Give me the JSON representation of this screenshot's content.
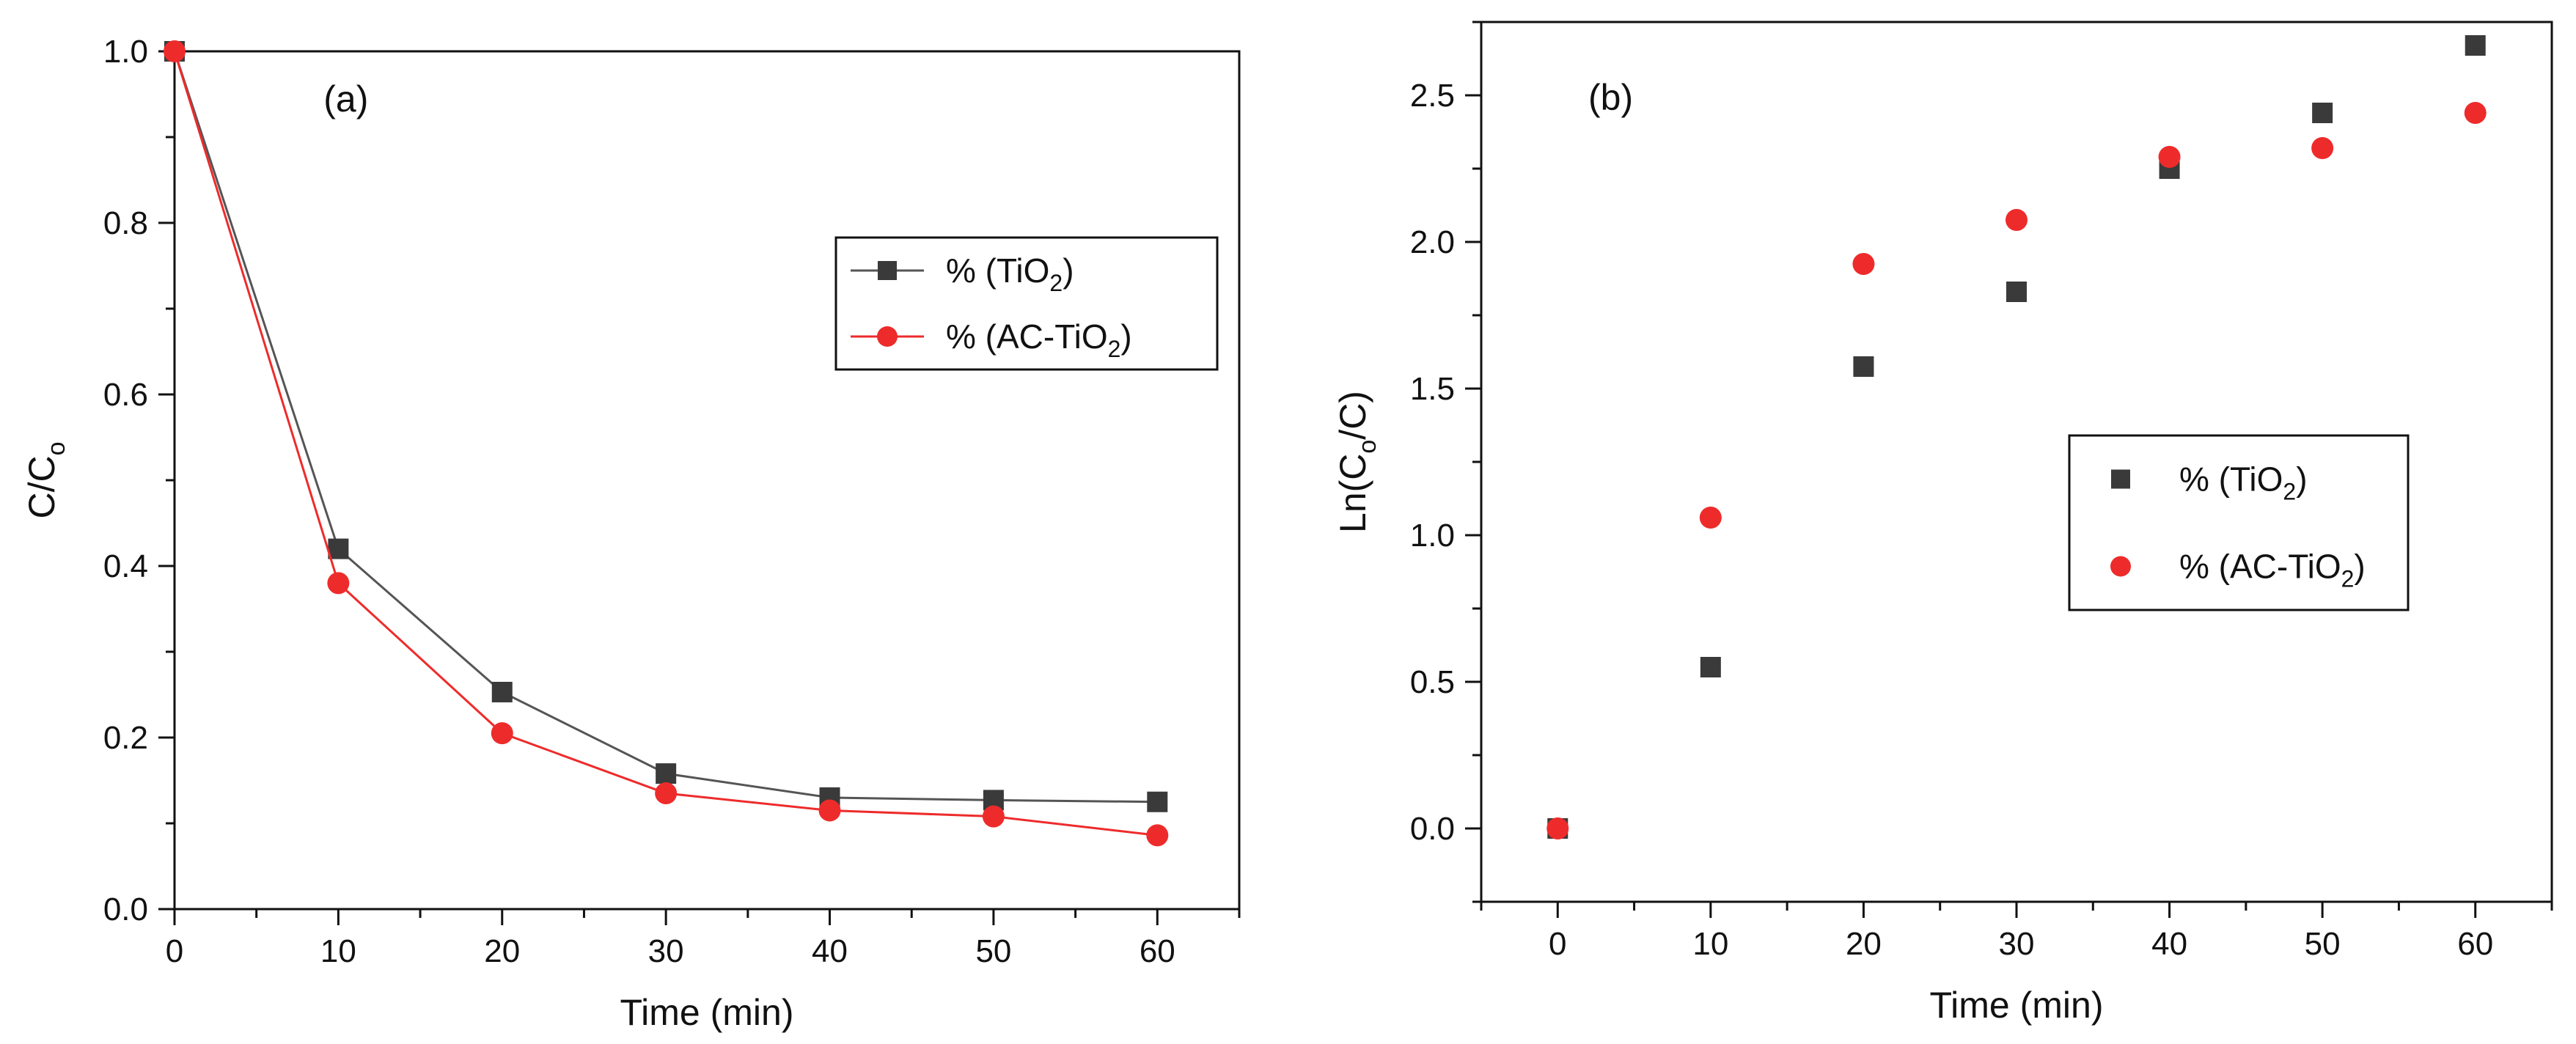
{
  "chart_data": [
    {
      "panel": "(a)",
      "type": "line",
      "xlabel": "Time (min)",
      "ylabel": {
        "base": "C/C",
        "sub": "o"
      },
      "xlim": [
        0,
        65
      ],
      "ylim": [
        0,
        1.0
      ],
      "xticks": [
        0,
        10,
        20,
        30,
        40,
        50,
        60
      ],
      "yticks": [
        0.0,
        0.2,
        0.4,
        0.6,
        0.8,
        1.0
      ],
      "xtick_labels": [
        "0",
        "10",
        "20",
        "30",
        "40",
        "50",
        "60"
      ],
      "ytick_labels": [
        "0.0",
        "0.2",
        "0.4",
        "0.6",
        "0.8",
        "1.0"
      ],
      "legend_position": "upper-right",
      "series": [
        {
          "name_pre": "% (TiO",
          "name_sub": "2",
          "name_post": ")",
          "marker": "square",
          "color": "#3a3a3a",
          "line_color": "#555555",
          "x": [
            0,
            10,
            20,
            30,
            40,
            50,
            60
          ],
          "y": [
            1.0,
            0.42,
            0.253,
            0.158,
            0.13,
            0.127,
            0.125
          ]
        },
        {
          "name_pre": "% (AC-TiO",
          "name_sub": "2",
          "name_post": ")",
          "marker": "circle",
          "color": "#ee2b2b",
          "line_color": "#ee2b2b",
          "x": [
            0,
            10,
            20,
            30,
            40,
            50,
            60
          ],
          "y": [
            1.0,
            0.38,
            0.205,
            0.135,
            0.115,
            0.108,
            0.086
          ]
        }
      ]
    },
    {
      "panel": "(b)",
      "type": "scatter",
      "xlabel": "Time (min)",
      "ylabel": {
        "pre": "Ln(C",
        "sub": "o",
        "post": "/C)"
      },
      "xlim": [
        -5,
        65
      ],
      "ylim": [
        -0.25,
        2.75
      ],
      "xticks": [
        0,
        10,
        20,
        30,
        40,
        50,
        60
      ],
      "yticks": [
        0.0,
        0.5,
        1.0,
        1.5,
        2.0,
        2.5
      ],
      "xtick_labels": [
        "0",
        "10",
        "20",
        "30",
        "40",
        "50",
        "60"
      ],
      "ytick_labels": [
        "0.0",
        "0.5",
        "1.0",
        "1.5",
        "2.0",
        "2.5"
      ],
      "legend_position": "center-right",
      "series": [
        {
          "name_pre": "% (TiO",
          "name_sub": "2",
          "name_post": ")",
          "marker": "square",
          "color": "#3a3a3a",
          "x": [
            0,
            10,
            20,
            30,
            40,
            50,
            60
          ],
          "y": [
            0.0,
            0.55,
            1.575,
            1.83,
            2.25,
            2.44,
            2.67
          ]
        },
        {
          "name_pre": "% (AC-TiO",
          "name_sub": "2",
          "name_post": ")",
          "marker": "circle",
          "color": "#ee2b2b",
          "x": [
            0,
            10,
            20,
            30,
            40,
            50,
            60
          ],
          "y": [
            0.0,
            1.06,
            1.925,
            2.075,
            2.29,
            2.32,
            2.44
          ]
        }
      ]
    }
  ]
}
